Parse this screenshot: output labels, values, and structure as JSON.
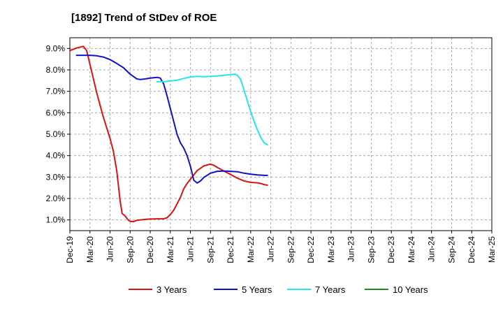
{
  "chart_data": {
    "type": "line",
    "title": "[1892]  Trend of StDev of ROE",
    "xlabel": "",
    "ylabel": "",
    "ylim": [
      0.5,
      9.5
    ],
    "y_ticks": [
      {
        "value": 1.0,
        "label": "1.0%"
      },
      {
        "value": 2.0,
        "label": "2.0%"
      },
      {
        "value": 3.0,
        "label": "3.0%"
      },
      {
        "value": 4.0,
        "label": "4.0%"
      },
      {
        "value": 5.0,
        "label": "5.0%"
      },
      {
        "value": 6.0,
        "label": "6.0%"
      },
      {
        "value": 7.0,
        "label": "7.0%"
      },
      {
        "value": 8.0,
        "label": "8.0%"
      },
      {
        "value": 9.0,
        "label": "9.0%"
      }
    ],
    "x_ticks": [
      "Dec-19",
      "Mar-20",
      "Jun-20",
      "Sep-20",
      "Dec-20",
      "Mar-21",
      "Jun-21",
      "Sep-21",
      "Dec-21",
      "Mar-22",
      "Jun-22",
      "Sep-22",
      "Dec-22",
      "Mar-23",
      "Jun-23",
      "Sep-23",
      "Dec-23",
      "Mar-24",
      "Jun-24",
      "Sep-24",
      "Dec-24",
      "Mar-25"
    ],
    "grid": true,
    "legend_position": "bottom",
    "series": [
      {
        "name": "3 Years",
        "color": "#dd1111",
        "values": [
          [
            0,
            8.9
          ],
          [
            1,
            9.02
          ],
          [
            2,
            9.1
          ],
          [
            2.5,
            8.9
          ],
          [
            3,
            8.25
          ],
          [
            4,
            6.95
          ],
          [
            5,
            5.8
          ],
          [
            6,
            4.8
          ],
          [
            6.5,
            4.2
          ],
          [
            7,
            3.3
          ],
          [
            7.5,
            1.9
          ],
          [
            7.8,
            1.3
          ],
          [
            8.2,
            1.2
          ],
          [
            8.7,
            1.0
          ],
          [
            9,
            0.93
          ],
          [
            9.5,
            0.92
          ],
          [
            10,
            0.98
          ],
          [
            11,
            1.02
          ],
          [
            12,
            1.04
          ],
          [
            13,
            1.05
          ],
          [
            14,
            1.05
          ],
          [
            14.5,
            1.1
          ],
          [
            15,
            1.25
          ],
          [
            15.5,
            1.45
          ],
          [
            16,
            1.75
          ],
          [
            16.5,
            2.05
          ],
          [
            17,
            2.45
          ],
          [
            17.5,
            2.7
          ],
          [
            18,
            2.9
          ],
          [
            18.5,
            3.1
          ],
          [
            19,
            3.3
          ],
          [
            20,
            3.52
          ],
          [
            21,
            3.6
          ],
          [
            21.5,
            3.55
          ],
          [
            22,
            3.45
          ],
          [
            23,
            3.28
          ],
          [
            24,
            3.12
          ],
          [
            25,
            2.95
          ],
          [
            26,
            2.82
          ],
          [
            27,
            2.75
          ],
          [
            28,
            2.73
          ],
          [
            28.5,
            2.7
          ],
          [
            29,
            2.65
          ],
          [
            29.5,
            2.62
          ]
        ]
      },
      {
        "name": "5 Years",
        "color": "#1111cc",
        "values": [
          [
            1,
            8.68
          ],
          [
            2,
            8.68
          ],
          [
            3,
            8.68
          ],
          [
            4,
            8.66
          ],
          [
            5,
            8.6
          ],
          [
            6,
            8.48
          ],
          [
            7,
            8.3
          ],
          [
            8,
            8.1
          ],
          [
            9,
            7.8
          ],
          [
            10,
            7.58
          ],
          [
            10.5,
            7.55
          ],
          [
            11,
            7.57
          ],
          [
            12,
            7.62
          ],
          [
            13,
            7.65
          ],
          [
            13.5,
            7.62
          ],
          [
            14,
            7.35
          ],
          [
            14.5,
            6.8
          ],
          [
            15,
            6.2
          ],
          [
            15.5,
            5.6
          ],
          [
            16,
            5.0
          ],
          [
            16.5,
            4.6
          ],
          [
            17,
            4.35
          ],
          [
            17.5,
            4.0
          ],
          [
            18,
            3.5
          ],
          [
            18.5,
            2.85
          ],
          [
            19,
            2.72
          ],
          [
            19.5,
            2.82
          ],
          [
            20,
            2.98
          ],
          [
            21,
            3.18
          ],
          [
            22,
            3.27
          ],
          [
            23,
            3.28
          ],
          [
            24,
            3.27
          ],
          [
            25,
            3.25
          ],
          [
            26,
            3.18
          ],
          [
            27,
            3.13
          ],
          [
            28,
            3.1
          ],
          [
            29,
            3.08
          ],
          [
            29.5,
            3.08
          ]
        ]
      },
      {
        "name": "7 Years",
        "color": "#22e8e8",
        "values": [
          [
            13,
            7.45
          ],
          [
            14,
            7.45
          ],
          [
            15,
            7.48
          ],
          [
            16,
            7.52
          ],
          [
            17,
            7.6
          ],
          [
            18,
            7.67
          ],
          [
            19,
            7.7
          ],
          [
            20,
            7.68
          ],
          [
            21,
            7.7
          ],
          [
            22,
            7.72
          ],
          [
            23,
            7.75
          ],
          [
            24,
            7.78
          ],
          [
            24.6,
            7.8
          ],
          [
            25,
            7.75
          ],
          [
            25.5,
            7.55
          ],
          [
            26,
            7.05
          ],
          [
            26.5,
            6.55
          ],
          [
            27,
            6.05
          ],
          [
            27.5,
            5.6
          ],
          [
            28,
            5.2
          ],
          [
            28.5,
            4.85
          ],
          [
            29,
            4.6
          ],
          [
            29.5,
            4.5
          ]
        ]
      },
      {
        "name": "10 Years",
        "color": "#228822",
        "values": []
      }
    ]
  }
}
